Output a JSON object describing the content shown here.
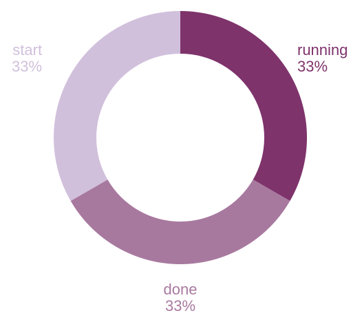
{
  "chart_data": {
    "type": "pie",
    "donut": true,
    "slices": [
      {
        "label": "running",
        "percent_label": "33%",
        "value": 33.33,
        "color": "#7e336b"
      },
      {
        "label": "done",
        "percent_label": "33%",
        "value": 33.33,
        "color": "#a8799f"
      },
      {
        "label": "start",
        "percent_label": "33%",
        "value": 33.33,
        "color": "#d1c0dc"
      }
    ],
    "legend": "none"
  }
}
